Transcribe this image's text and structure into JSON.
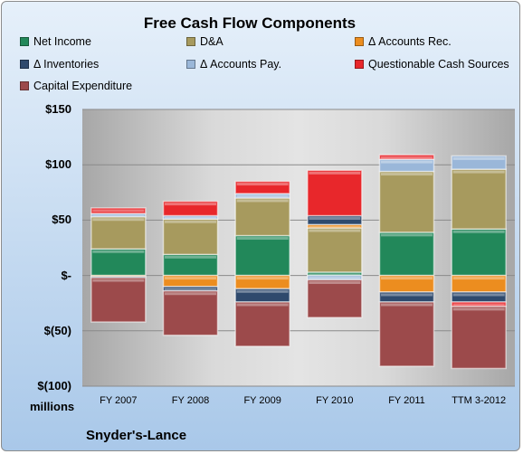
{
  "chart_data": {
    "type": "bar",
    "stacked": true,
    "title": "Free Cash Flow Components",
    "unit_label": "millions",
    "company": "Snyder's-Lance",
    "categories": [
      "FY 2007",
      "FY 2008",
      "FY 2009",
      "FY 2010",
      "FY 2011",
      "TTM 3-2012"
    ],
    "ylim": [
      -100,
      150
    ],
    "yticks": [
      {
        "value": 150,
        "label": "$150"
      },
      {
        "value": 100,
        "label": "$100"
      },
      {
        "value": 50,
        "label": "$50"
      },
      {
        "value": 0,
        "label": "$-"
      },
      {
        "value": -50,
        "label": "$(50)"
      },
      {
        "value": -100,
        "label": "$(100)"
      }
    ],
    "grid": true,
    "legend_position": "top",
    "series": [
      {
        "name": "Net Income",
        "color": "#22885a",
        "values": [
          24,
          19,
          36,
          3,
          39,
          42
        ]
      },
      {
        "name": "D&A",
        "color": "#a79a5e",
        "values": [
          29,
          32,
          34,
          40,
          55,
          54
        ]
      },
      {
        "name": "Δ Accounts Rec.",
        "color": "#ec8d1f",
        "values": [
          -1,
          -10,
          -12,
          3,
          -15,
          -15
        ]
      },
      {
        "name": "Δ Inventories",
        "color": "#2f4a6d",
        "values": [
          -1,
          -4,
          -12,
          8,
          -9,
          -9
        ]
      },
      {
        "name": "Δ Accounts Pay.",
        "color": "#9ab7d9",
        "values": [
          3,
          3,
          4,
          -4,
          11,
          12
        ]
      },
      {
        "name": "Questionable Cash Sources",
        "color": "#e8272b",
        "values": [
          5,
          13,
          11,
          41,
          4,
          -4
        ]
      },
      {
        "name": "Capital Expenditure",
        "color": "#9c4a4b",
        "values": [
          -40,
          -40,
          -40,
          -34,
          -58,
          -56
        ]
      }
    ]
  }
}
